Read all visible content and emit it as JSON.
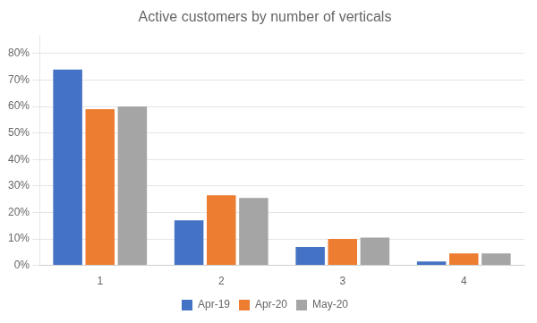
{
  "chart_data": {
    "type": "bar",
    "title": "Active customers by number of verticals",
    "categories": [
      "1",
      "2",
      "3",
      "4"
    ],
    "series": [
      {
        "name": "Apr-19",
        "color": "#4472C4",
        "values": [
          0.74,
          0.17,
          0.07,
          0.015
        ]
      },
      {
        "name": "Apr-20",
        "color": "#ED7D31",
        "values": [
          0.59,
          0.265,
          0.1,
          0.045
        ]
      },
      {
        "name": "May-20",
        "color": "#A5A5A5",
        "values": [
          0.6,
          0.255,
          0.105,
          0.045
        ]
      }
    ],
    "ylim": [
      0,
      0.87
    ],
    "yticks": [
      {
        "value": 0.0,
        "label": "0%"
      },
      {
        "value": 0.1,
        "label": "10%"
      },
      {
        "value": 0.2,
        "label": "20%"
      },
      {
        "value": 0.3,
        "label": "30%"
      },
      {
        "value": 0.4,
        "label": "40%"
      },
      {
        "value": 0.5,
        "label": "50%"
      },
      {
        "value": 0.6,
        "label": "60%"
      },
      {
        "value": 0.7,
        "label": "70%"
      },
      {
        "value": 0.8,
        "label": "80%"
      }
    ],
    "grid": true,
    "legend": "bottom"
  }
}
